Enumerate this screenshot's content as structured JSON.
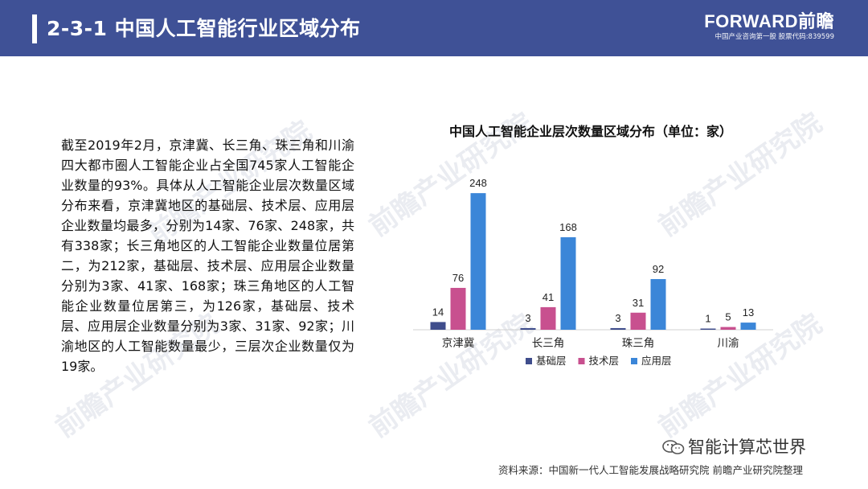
{
  "header": {
    "title": "2-3-1  中国人工智能行业区域分布",
    "brand_name": "FORWARD前瞻",
    "brand_sub": "中国产业咨询第一股  股票代码:839599"
  },
  "watermark_text": "前瞻产业研究院",
  "body_text": "截至2019年2月，京津冀、长三角、珠三角和川渝四大都市圈人工智能企业占全国745家人工智能企业数量的93%。具体从人工智能企业层次数量区域分布来看，京津冀地区的基础层、技术层、应用层企业数量均最多，分别为14家、76家、248家，共有338家；长三角地区的人工智能企业数量位居第二，为212家，基础层、技术层、应用层企业数量分别为3家、41家、168家；珠三角地区的人工智能企业数量位居第三，为126家，基础层、技术层、应用层企业数量分别为3家、31家、92家；川渝地区的人工智能数量最少，三层次企业数量仅为19家。",
  "chart_data": {
    "type": "bar",
    "title": "中国人工智能企业层次数量区域分布（单位：家）",
    "categories": [
      "京津冀",
      "长三角",
      "珠三角",
      "川渝"
    ],
    "series": [
      {
        "name": "基础层",
        "values": [
          14,
          3,
          3,
          1
        ],
        "color": "#3f4d8c"
      },
      {
        "name": "技术层",
        "values": [
          76,
          41,
          31,
          5
        ],
        "color": "#c8508f"
      },
      {
        "name": "应用层",
        "values": [
          248,
          168,
          92,
          13
        ],
        "color": "#3b86d8"
      }
    ],
    "ylim": [
      0,
      260
    ],
    "grid": false,
    "legend": "bottom"
  },
  "footer": {
    "source": "资料来源：中国新一代人工智能发展战略研究院 前瞻产业研究院整理",
    "wechat": "智能计算芯世界"
  },
  "colors": {
    "header_bg": "#3f5196",
    "header_text": "#ffffff"
  }
}
